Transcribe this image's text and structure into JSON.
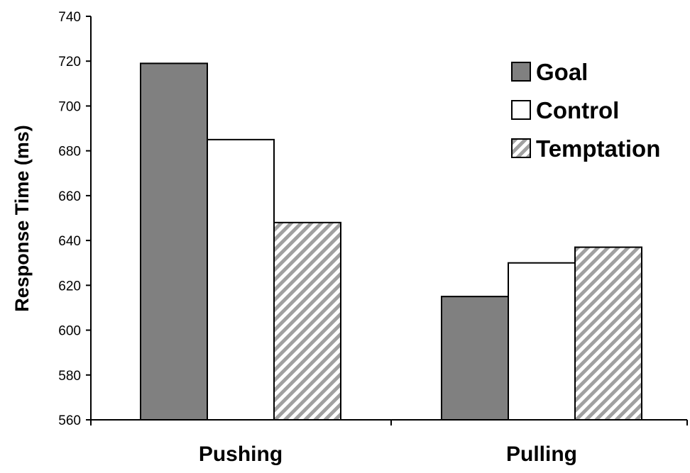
{
  "chart_data": {
    "type": "bar",
    "title": "",
    "xlabel": "",
    "ylabel": "Response Time (ms)",
    "ylim": [
      560,
      740
    ],
    "ytick_step": 20,
    "yticks": [
      "560",
      "580",
      "600",
      "620",
      "640",
      "660",
      "680",
      "700",
      "720",
      "740"
    ],
    "grid": false,
    "legend_position": "top-right",
    "categories": [
      "Pushing",
      "Pulling"
    ],
    "series": [
      {
        "name": "Goal",
        "values": [
          719,
          615
        ],
        "fill": "gray",
        "color": "#808080"
      },
      {
        "name": "Control",
        "values": [
          685,
          630
        ],
        "fill": "white",
        "color": "#ffffff"
      },
      {
        "name": "Temptation",
        "values": [
          648,
          637
        ],
        "fill": "hatch",
        "color": "#a0a0a0"
      }
    ]
  }
}
